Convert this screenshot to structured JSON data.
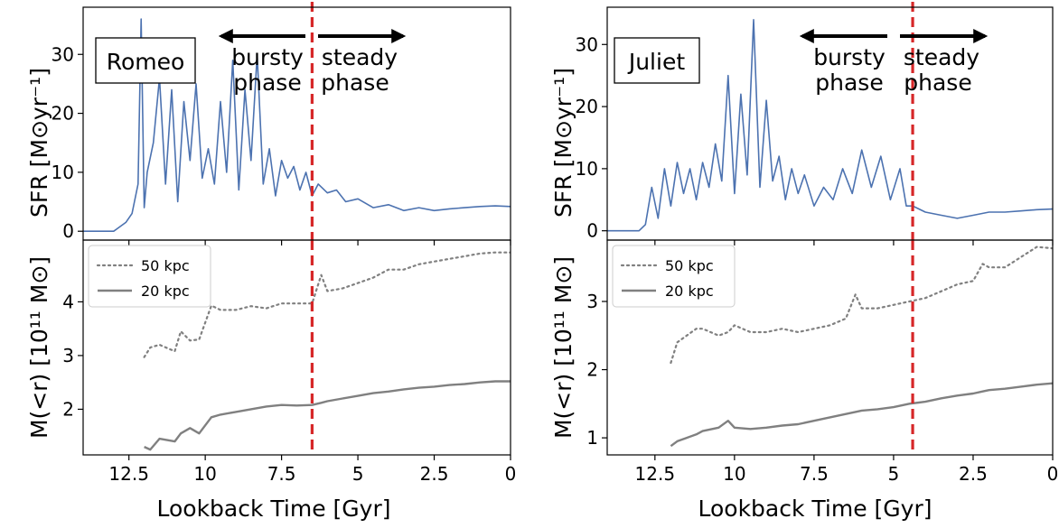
{
  "figure": {
    "xlabel": "Lookback Time [Gyr]",
    "sfr_ylabel": "SFR [M⊙yr⁻¹]",
    "mass_ylabel": "M(<r) [10¹¹ M⊙]",
    "bursty_label": [
      "bursty",
      "phase"
    ],
    "steady_label": [
      "steady",
      "phase"
    ]
  },
  "chart_data": [
    {
      "type": "line",
      "title": "Romeo",
      "panel": "top",
      "xlabel": "Lookback Time [Gyr]",
      "ylabel": "SFR [M⊙yr⁻¹]",
      "xlim": [
        14.0,
        0.0
      ],
      "ylim": [
        -1.5,
        38
      ],
      "xticks": [
        12.5,
        10.0,
        7.5,
        5.0,
        2.5,
        0.0
      ],
      "yticks": [
        0,
        10,
        20,
        30
      ],
      "transition_gyr": 6.5,
      "line_color": "#4c72b0",
      "x": [
        14.0,
        13.0,
        12.6,
        12.4,
        12.2,
        12.1,
        12.0,
        11.9,
        11.7,
        11.5,
        11.3,
        11.1,
        10.9,
        10.7,
        10.5,
        10.3,
        10.1,
        9.9,
        9.7,
        9.5,
        9.3,
        9.1,
        8.9,
        8.7,
        8.5,
        8.3,
        8.1,
        7.9,
        7.7,
        7.5,
        7.3,
        7.1,
        6.9,
        6.7,
        6.5,
        6.3,
        6.0,
        5.7,
        5.4,
        5.0,
        4.5,
        4.0,
        3.5,
        3.0,
        2.5,
        2.0,
        1.5,
        1.0,
        0.5,
        0.0
      ],
      "values": [
        0.0,
        0.0,
        1.5,
        3.0,
        8.0,
        36.0,
        4.0,
        10.0,
        15.0,
        26.0,
        8.0,
        24.0,
        5.0,
        22.0,
        12.0,
        25.0,
        9.0,
        14.0,
        8.0,
        22.0,
        10.0,
        29.0,
        7.0,
        24.0,
        12.0,
        30.0,
        8.0,
        14.0,
        6.0,
        12.0,
        9.0,
        11.0,
        7.0,
        10.0,
        6.0,
        8.0,
        6.5,
        7.0,
        5.0,
        5.5,
        4.0,
        4.5,
        3.5,
        4.0,
        3.5,
        3.8,
        4.0,
        4.2,
        4.3,
        4.2
      ]
    },
    {
      "type": "line",
      "title": "",
      "panel": "bottom",
      "xlabel": "Lookback Time [Gyr]",
      "ylabel": "M(<r) [10¹¹ M⊙]",
      "xlim": [
        14.0,
        0.0
      ],
      "ylim": [
        1.15,
        5.15
      ],
      "xticks": [
        12.5,
        10.0,
        7.5,
        5.0,
        2.5,
        0.0
      ],
      "yticks": [
        2,
        3,
        4
      ],
      "transition_gyr": 6.5,
      "x": [
        12.0,
        11.8,
        11.5,
        11.0,
        10.8,
        10.5,
        10.2,
        9.8,
        9.5,
        9.0,
        8.5,
        8.0,
        7.5,
        7.0,
        6.5,
        6.2,
        6.0,
        5.5,
        5.0,
        4.5,
        4.0,
        3.5,
        3.0,
        2.5,
        2.0,
        1.5,
        1.0,
        0.5,
        0.0
      ],
      "series": [
        {
          "name": "50 kpc",
          "style": "dotted",
          "color": "#808080",
          "values": [
            2.97,
            3.15,
            3.2,
            3.08,
            3.45,
            3.28,
            3.3,
            3.93,
            3.85,
            3.85,
            3.92,
            3.88,
            3.97,
            3.97,
            3.97,
            4.5,
            4.2,
            4.25,
            4.35,
            4.45,
            4.6,
            4.6,
            4.7,
            4.75,
            4.8,
            4.85,
            4.9,
            4.92,
            4.92
          ]
        },
        {
          "name": "20 kpc",
          "style": "solid",
          "color": "#808080",
          "values": [
            1.3,
            1.25,
            1.45,
            1.4,
            1.55,
            1.65,
            1.55,
            1.85,
            1.9,
            1.95,
            2.0,
            2.05,
            2.08,
            2.07,
            2.08,
            2.12,
            2.15,
            2.2,
            2.25,
            2.3,
            2.33,
            2.37,
            2.4,
            2.42,
            2.45,
            2.47,
            2.5,
            2.52,
            2.52
          ]
        }
      ]
    },
    {
      "type": "line",
      "title": "Juliet",
      "panel": "top",
      "xlabel": "Lookback Time [Gyr]",
      "ylabel": "SFR [M⊙yr⁻¹]",
      "xlim": [
        14.0,
        0.0
      ],
      "ylim": [
        -1.5,
        36
      ],
      "xticks": [
        12.5,
        10.0,
        7.5,
        5.0,
        2.5,
        0.0
      ],
      "yticks": [
        0,
        10,
        20,
        30
      ],
      "transition_gyr": 4.4,
      "line_color": "#4c72b0",
      "x": [
        14.0,
        13.0,
        12.8,
        12.6,
        12.4,
        12.2,
        12.0,
        11.8,
        11.6,
        11.4,
        11.2,
        11.0,
        10.8,
        10.6,
        10.4,
        10.2,
        10.0,
        9.8,
        9.6,
        9.4,
        9.2,
        9.0,
        8.8,
        8.6,
        8.4,
        8.2,
        8.0,
        7.8,
        7.5,
        7.2,
        6.9,
        6.6,
        6.3,
        6.0,
        5.7,
        5.4,
        5.1,
        4.8,
        4.6,
        4.4,
        4.0,
        3.5,
        3.0,
        2.5,
        2.0,
        1.5,
        1.0,
        0.5,
        0.0
      ],
      "values": [
        0.0,
        0.0,
        1.0,
        7.0,
        2.0,
        10.0,
        4.0,
        11.0,
        6.0,
        10.0,
        5.0,
        11.0,
        7.0,
        14.0,
        8.0,
        25.0,
        6.0,
        22.0,
        9.0,
        34.0,
        7.0,
        21.0,
        8.0,
        12.0,
        5.0,
        10.0,
        6.0,
        9.0,
        4.0,
        7.0,
        5.0,
        10.0,
        6.0,
        13.0,
        7.0,
        12.0,
        5.0,
        10.0,
        4.0,
        4.0,
        3.0,
        2.5,
        2.0,
        2.5,
        3.0,
        3.0,
        3.2,
        3.4,
        3.5
      ]
    },
    {
      "type": "line",
      "title": "",
      "panel": "bottom",
      "xlabel": "Lookback Time [Gyr]",
      "ylabel": "M(<r) [10¹¹ M⊙]",
      "xlim": [
        14.0,
        0.0
      ],
      "ylim": [
        0.75,
        3.9
      ],
      "xticks": [
        12.5,
        10.0,
        7.5,
        5.0,
        2.5,
        0.0
      ],
      "yticks": [
        1,
        2,
        3
      ],
      "transition_gyr": 4.4,
      "x": [
        12.0,
        11.8,
        11.5,
        11.2,
        11.0,
        10.5,
        10.2,
        10.0,
        9.5,
        9.0,
        8.5,
        8.0,
        7.5,
        7.0,
        6.5,
        6.2,
        6.0,
        5.5,
        5.0,
        4.5,
        4.0,
        3.5,
        3.0,
        2.5,
        2.2,
        2.0,
        1.5,
        1.0,
        0.5,
        0.0
      ],
      "series": [
        {
          "name": "50 kpc",
          "style": "dotted",
          "color": "#808080",
          "values": [
            2.1,
            2.4,
            2.5,
            2.6,
            2.6,
            2.5,
            2.55,
            2.65,
            2.55,
            2.55,
            2.6,
            2.55,
            2.6,
            2.65,
            2.75,
            3.1,
            2.9,
            2.9,
            2.95,
            3.0,
            3.05,
            3.15,
            3.25,
            3.3,
            3.55,
            3.5,
            3.5,
            3.65,
            3.8,
            3.78
          ]
        },
        {
          "name": "20 kpc",
          "style": "solid",
          "color": "#808080",
          "values": [
            0.88,
            0.95,
            1.0,
            1.05,
            1.1,
            1.15,
            1.25,
            1.15,
            1.13,
            1.15,
            1.18,
            1.2,
            1.25,
            1.3,
            1.35,
            1.38,
            1.4,
            1.42,
            1.45,
            1.5,
            1.53,
            1.58,
            1.62,
            1.65,
            1.68,
            1.7,
            1.72,
            1.75,
            1.78,
            1.8
          ]
        }
      ]
    }
  ]
}
